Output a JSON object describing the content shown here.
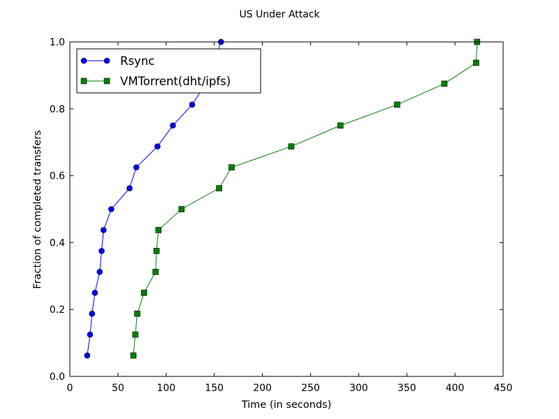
{
  "chart_data": {
    "type": "line",
    "title": "US Under Attack",
    "xlabel": "Time (in seconds)",
    "ylabel": "Fraction of completed transfers",
    "xlim": [
      0,
      450
    ],
    "ylim": [
      0.0,
      1.0
    ],
    "xticks": [
      "0",
      "50",
      "100",
      "150",
      "200",
      "250",
      "300",
      "350",
      "400",
      "450"
    ],
    "yticks": [
      "0.0",
      "0.2",
      "0.4",
      "0.6",
      "0.8",
      "1.0"
    ],
    "grid": false,
    "legend_position": "upper-left",
    "series": [
      {
        "name": "Rsync",
        "color": "#0000ff",
        "marker": "circle",
        "x": [
          18,
          21,
          23,
          26,
          31,
          33,
          35,
          43,
          62,
          69,
          91,
          107,
          127,
          141,
          157
        ],
        "y": [
          0.0625,
          0.125,
          0.1875,
          0.25,
          0.3125,
          0.375,
          0.4375,
          0.5,
          0.5625,
          0.625,
          0.6875,
          0.75,
          0.8125,
          0.875,
          1.0
        ]
      },
      {
        "name": "VMTorrent(dht/ipfs)",
        "color": "#008000",
        "marker": "square",
        "x": [
          66,
          68,
          70,
          77,
          89,
          90,
          92,
          116,
          155,
          168,
          230,
          281,
          340,
          389,
          422,
          423
        ],
        "y": [
          0.0625,
          0.125,
          0.1875,
          0.25,
          0.3125,
          0.375,
          0.4375,
          0.5,
          0.5625,
          0.625,
          0.6875,
          0.75,
          0.8125,
          0.875,
          0.9375,
          1.0
        ]
      }
    ]
  }
}
